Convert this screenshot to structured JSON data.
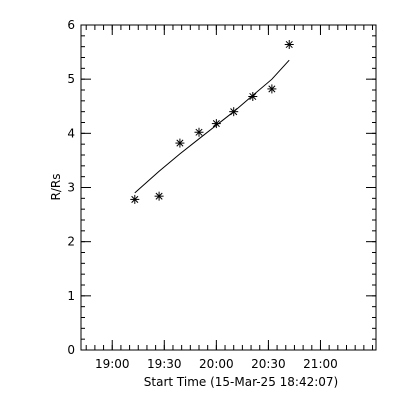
{
  "chart_data": {
    "type": "scatter",
    "title": "",
    "xlabel": "Start Time (15-Mar-25 18:42:07)",
    "ylabel": "R/Rs",
    "x_axis": {
      "unit": "minutes after 18:42:07",
      "range": [
        0,
        170
      ],
      "ticks": [
        {
          "value": 18,
          "label": "19:00"
        },
        {
          "value": 48,
          "label": "19:30"
        },
        {
          "value": 78,
          "label": "20:00"
        },
        {
          "value": 108,
          "label": "20:30"
        },
        {
          "value": 138,
          "label": "21:00"
        }
      ]
    },
    "y_axis": {
      "range": [
        0,
        6
      ],
      "ticks": [
        0,
        1,
        2,
        3,
        4,
        5,
        6
      ]
    },
    "series": [
      {
        "type": "scatter",
        "marker": "asterisk",
        "x": [
          31,
          45,
          57,
          68,
          78,
          88,
          99,
          110,
          120
        ],
        "y": [
          2.78,
          2.84,
          3.82,
          4.02,
          4.18,
          4.4,
          4.68,
          4.82,
          5.64
        ]
      },
      {
        "type": "line",
        "x": [
          31,
          45,
          57,
          68,
          78,
          88,
          99,
          110,
          120
        ],
        "y": [
          2.9,
          3.3,
          3.62,
          3.9,
          4.15,
          4.4,
          4.7,
          5.0,
          5.35
        ]
      }
    ]
  }
}
